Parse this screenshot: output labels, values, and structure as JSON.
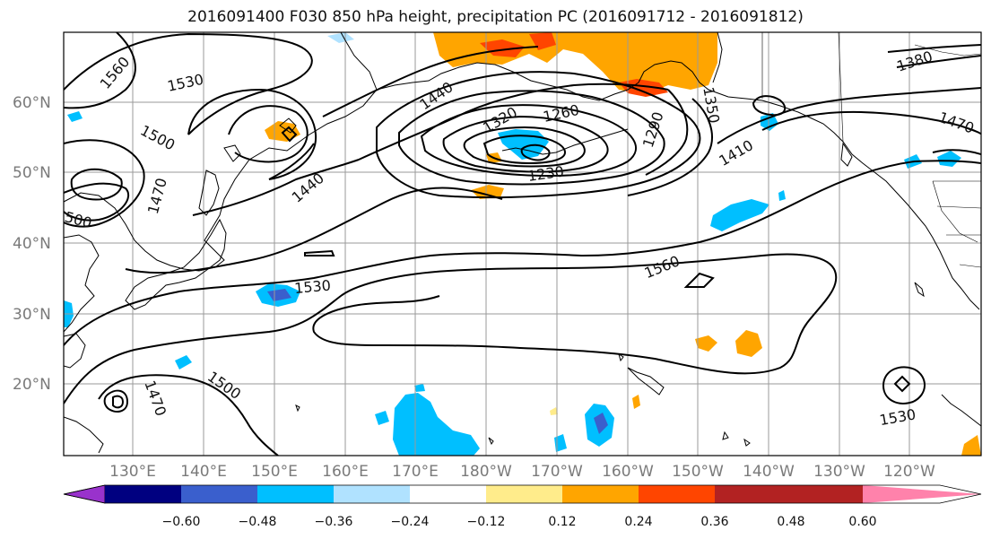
{
  "title": "2016091400 F030 850 hPa height, precipitation PC (2016091712 - 2016091812)",
  "lat_labels": [
    "60°N",
    "50°N",
    "40°N",
    "30°N",
    "20°N"
  ],
  "lon_labels": [
    "130°E",
    "140°E",
    "150°E",
    "160°E",
    "170°E",
    "180°W",
    "170°W",
    "160°W",
    "150°W",
    "140°W",
    "130°W",
    "120°W"
  ],
  "contour_labels": {
    "c1560_nw": "1560",
    "c1530_nw": "1530",
    "c1500_w": "1500",
    "c1470_w": "1470",
    "c500_w": "500",
    "c1440_w": "1440",
    "c1440_n": "1440",
    "c1320": "1320",
    "c1260": "1260",
    "c1230": "1230",
    "c1290": "1290",
    "c1350": "1350",
    "c1380": "1380",
    "c1410": "1410",
    "c1470_e": "1470",
    "c1560_c": "1560",
    "c1530_c": "1530",
    "c1500_s": "1500",
    "c1470_s": "1470",
    "c1530_se": "1530"
  },
  "colorbar": {
    "ticks": [
      "−0.60",
      "−0.48",
      "−0.36",
      "−0.24",
      "−0.12",
      "0.12",
      "0.24",
      "0.36",
      "0.48",
      "0.60"
    ],
    "colors": [
      "#9932CC",
      "#000080",
      "#3A5FCD",
      "#00BFFF",
      "#B0E2FF",
      "#FFFFFF",
      "#FFEC8B",
      "#FFA500",
      "#FF4500",
      "#B22222",
      "#FF82AB"
    ]
  }
}
